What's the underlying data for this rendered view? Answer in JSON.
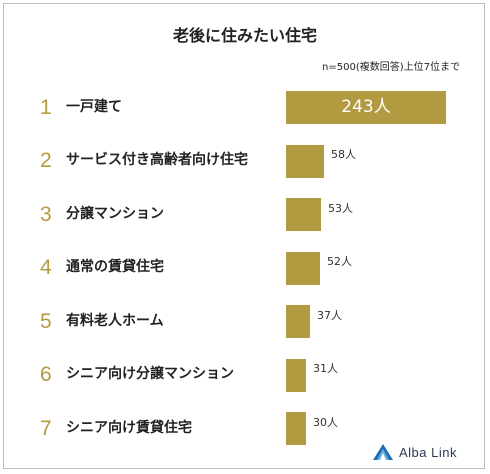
{
  "chart_data": {
    "type": "bar",
    "orientation": "horizontal",
    "title": "老後に住みたい住宅",
    "subtitle": "n=500(複数回答)上位7位まで",
    "unit": "人",
    "ranks": [
      "1",
      "2",
      "3",
      "4",
      "5",
      "6",
      "7"
    ],
    "categories": [
      "一戸建て",
      "サービス付き高齢者向け住宅",
      "分譲マンション",
      "通常の賃貸住宅",
      "有料老人ホーム",
      "シニア向け分譲マンション",
      "シニア向け賃貸住宅"
    ],
    "values": [
      243,
      58,
      53,
      52,
      37,
      31,
      30
    ],
    "value_labels": [
      "243人",
      "58人",
      "53人",
      "52人",
      "37人",
      "31人",
      "30人"
    ],
    "bar_color": "#b19a3f",
    "rank_color": "#b59a3e"
  },
  "brand": {
    "name": "Alba Link"
  }
}
